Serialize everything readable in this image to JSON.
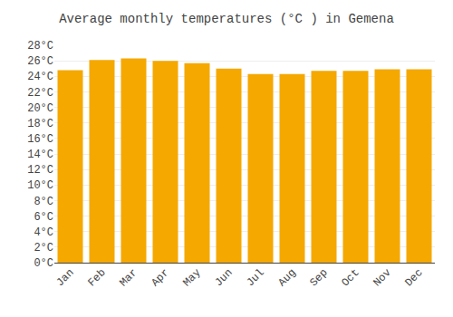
{
  "chart_data": {
    "type": "bar",
    "title": "Average monthly temperatures (°C ) in Gemena",
    "categories": [
      "Jan",
      "Feb",
      "Mar",
      "Apr",
      "May",
      "Jun",
      "Jul",
      "Aug",
      "Sep",
      "Oct",
      "Nov",
      "Dec"
    ],
    "values": [
      24.8,
      26.1,
      26.3,
      26.0,
      25.7,
      25.0,
      24.3,
      24.3,
      24.7,
      24.7,
      24.9,
      24.9
    ],
    "color": "#F5A800",
    "ylim": [
      0,
      28
    ],
    "yticks": [
      {
        "value": 0,
        "label": "0°C"
      },
      {
        "value": 2,
        "label": "2°C"
      },
      {
        "value": 4,
        "label": "4°C"
      },
      {
        "value": 6,
        "label": "6°C"
      },
      {
        "value": 8,
        "label": "8°C"
      },
      {
        "value": 10,
        "label": "10°C"
      },
      {
        "value": 12,
        "label": "12°C"
      },
      {
        "value": 14,
        "label": "14°C"
      },
      {
        "value": 16,
        "label": "16°C"
      },
      {
        "value": 18,
        "label": "18°C"
      },
      {
        "value": 20,
        "label": "20°C"
      },
      {
        "value": 22,
        "label": "22°C"
      },
      {
        "value": 24,
        "label": "24°C"
      },
      {
        "value": 26,
        "label": "26°C"
      },
      {
        "value": 28,
        "label": "28°C"
      }
    ],
    "grid": true
  }
}
